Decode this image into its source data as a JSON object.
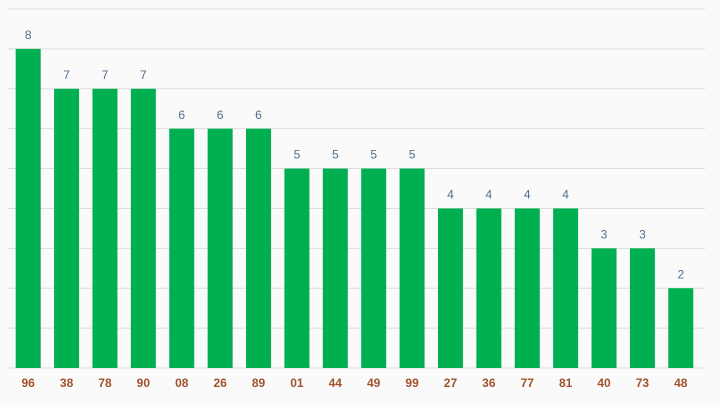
{
  "chart_data": {
    "type": "bar",
    "categories": [
      "96",
      "38",
      "78",
      "90",
      "08",
      "26",
      "89",
      "01",
      "44",
      "49",
      "99",
      "27",
      "36",
      "77",
      "81",
      "40",
      "73",
      "48"
    ],
    "values": [
      8,
      7,
      7,
      7,
      6,
      6,
      6,
      5,
      5,
      5,
      5,
      4,
      4,
      4,
      4,
      3,
      3,
      2
    ],
    "color": "#00b050",
    "ylim": [
      0,
      9
    ],
    "yticks": [
      0,
      1,
      2,
      3,
      4,
      5,
      6,
      7,
      8,
      9
    ],
    "grid": true
  }
}
